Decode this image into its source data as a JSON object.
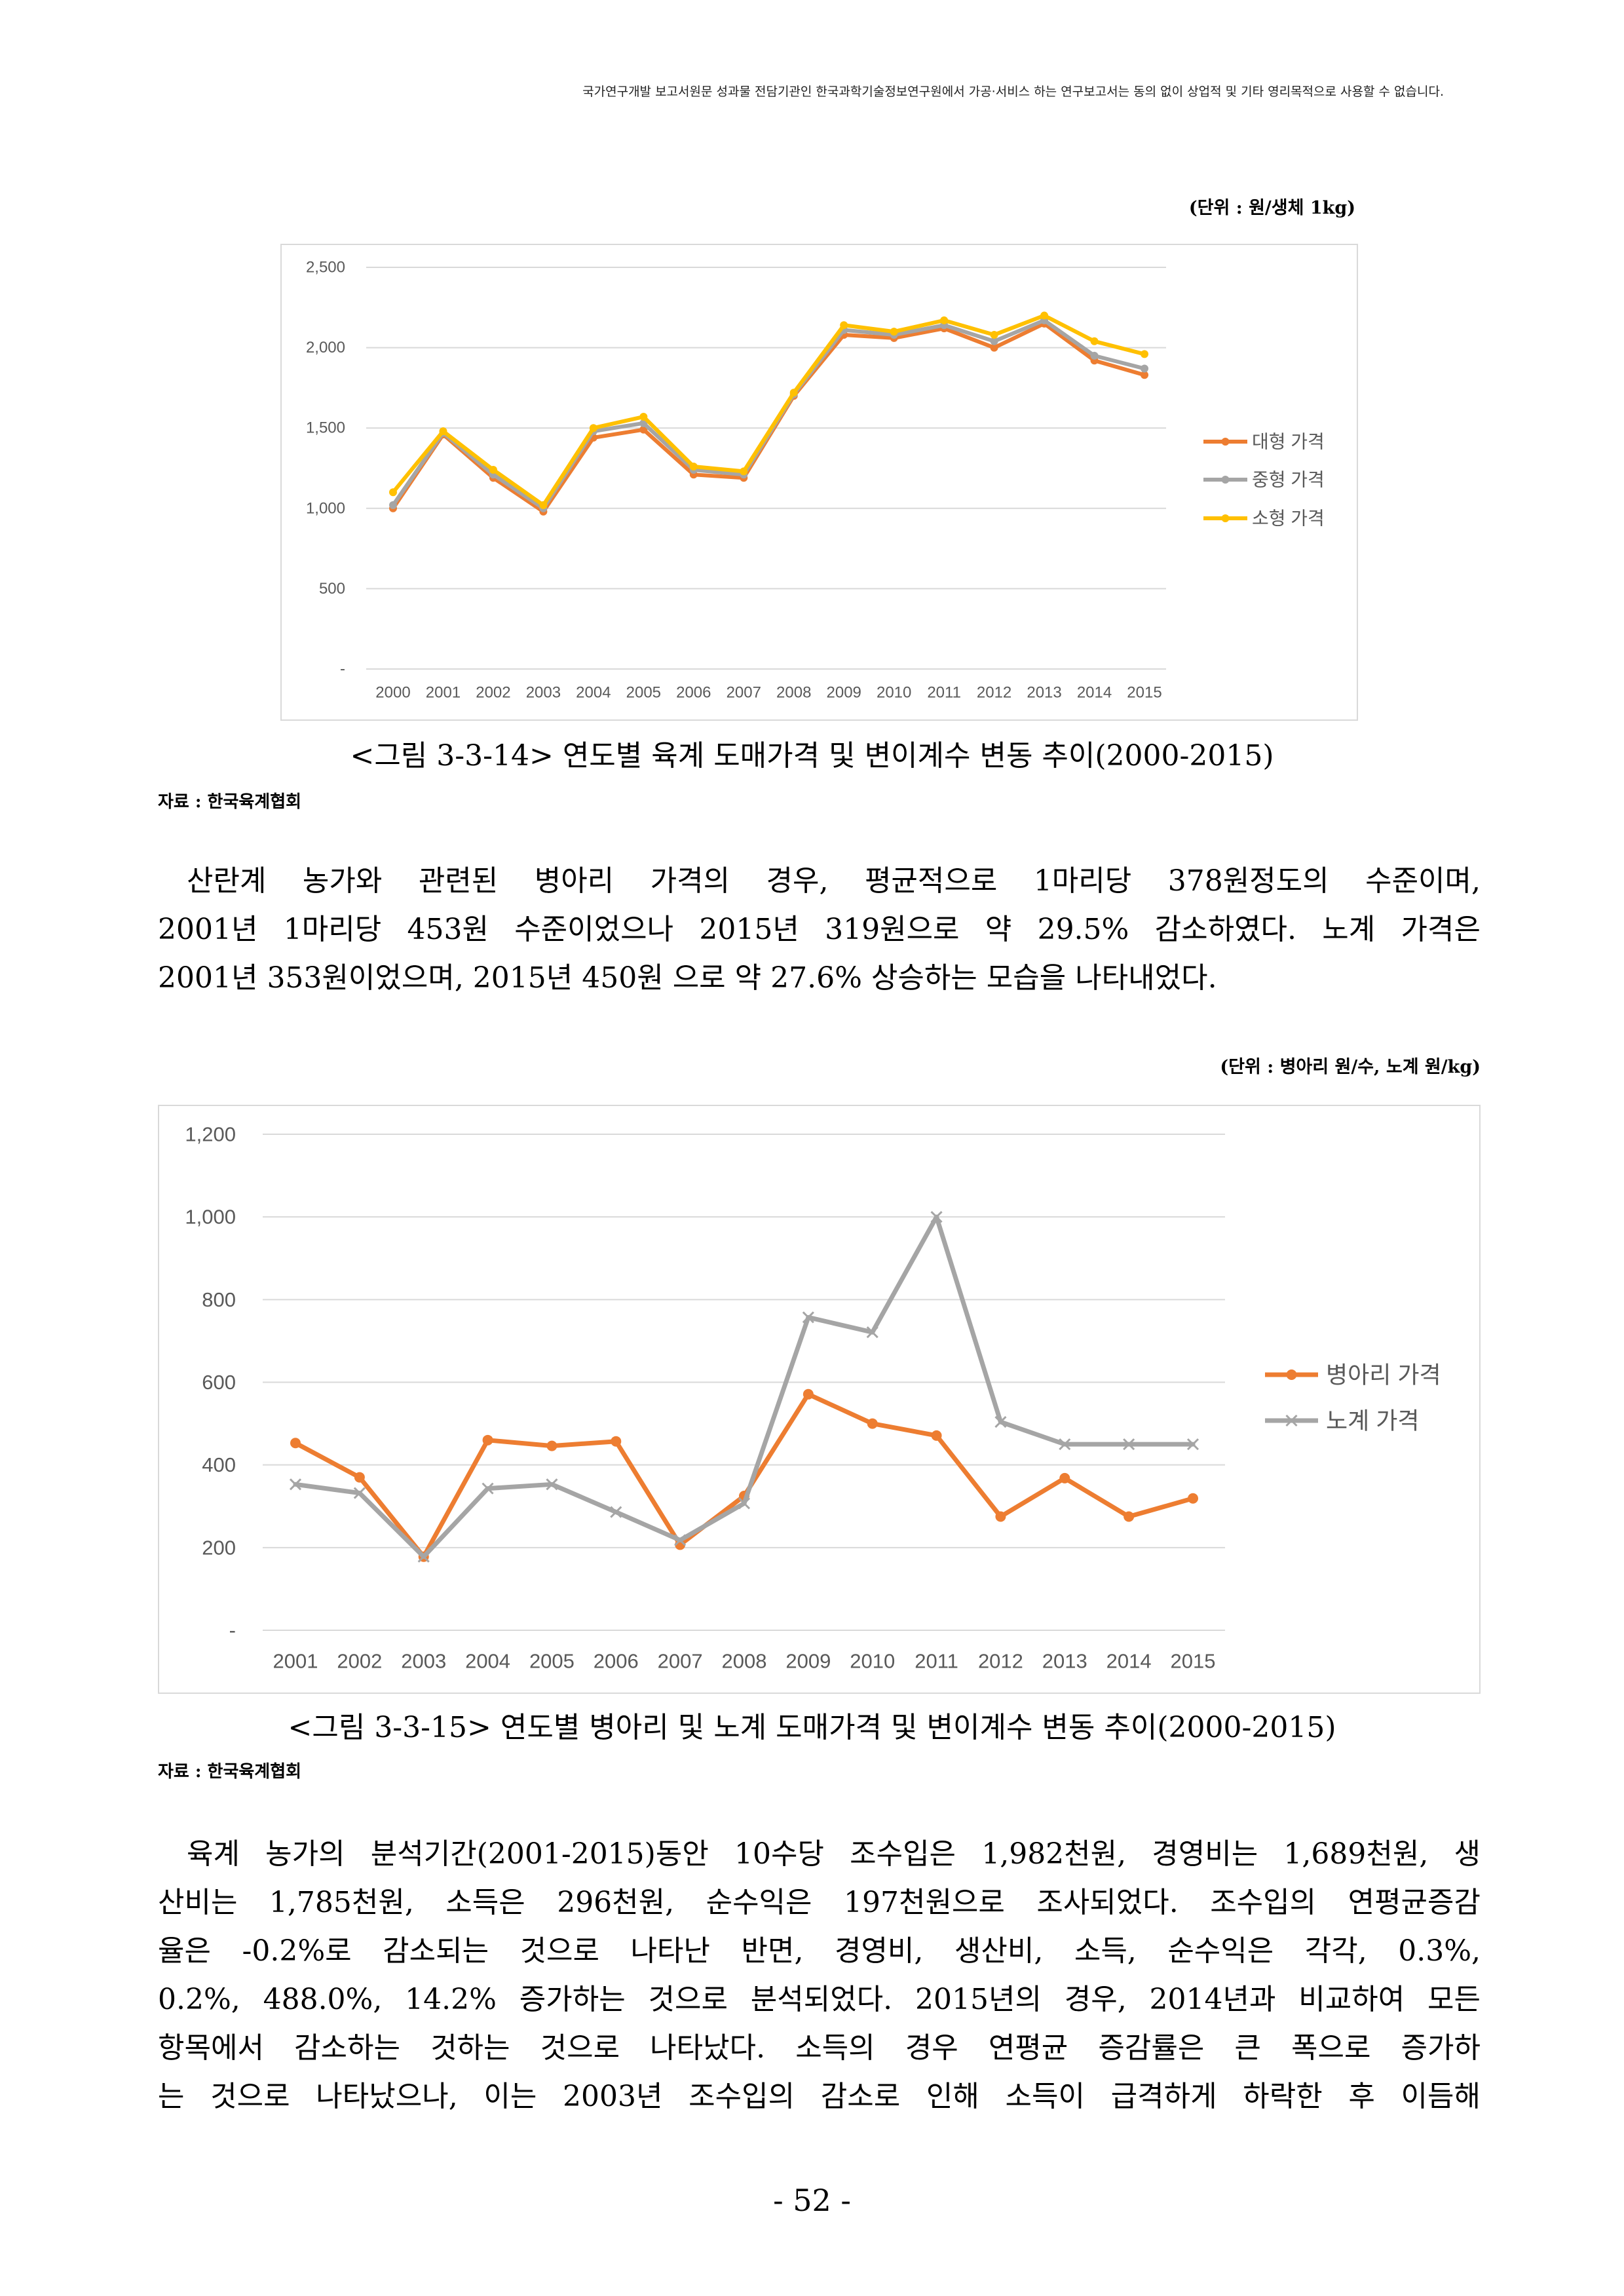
{
  "header_notice": "국가연구개발 보고서원문 성과물 전담기관인 한국과학기술정보연구원에서 가공·서비스 하는 연구보고서는 동의 없이 상업적 및 기타 영리목적으로 사용할 수 없습니다.",
  "figures": [
    {
      "unit": "(단위 : 원/생체 1kg)",
      "caption": "<그림 3-3-14> 연도별 육계 도매가격 및 변이계수 변동 추이(2000-2015)",
      "source": "자료 : 한국육계협회"
    },
    {
      "unit": "(단위 : 병아리 원/수, 노계 원/kg)",
      "caption": "<그림 3-3-15> 연도별 병아리 및 노계 도매가격 및 변이계수 변동 추이(2000-2015)",
      "source": "자료 : 한국육계협회"
    }
  ],
  "paragraphs": [
    [
      "산란계 농가와 관련된 병아리 가격의 경우, 평균적으로 1마리당 378원정도의 수준이며,",
      "2001년 1마리당 453원 수준이었으나 2015년 319원으로 약 29.5% 감소하였다. 노계 가격은",
      "2001년 353원이었으며, 2015년 450원 으로 약 27.6% 상승하는 모습을 나타내었다."
    ],
    [
      "육계 농가의 분석기간(2001-2015)동안 10수당 조수입은 1,982천원, 경영비는 1,689천원, 생",
      "산비는 1,785천원, 소득은 296천원, 순수익은 197천원으로 조사되었다. 조수입의 연평균증감",
      "율은 -0.2%로 감소되는 것으로 나타난 반면, 경영비, 생산비, 소득, 순수익은 각각, 0.3%,",
      "0.2%, 488.0%, 14.2% 증가하는 것으로 분석되었다. 2015년의 경우, 2014년과 비교하여 모든",
      "항목에서 감소하는 것하는 것으로 나타났다. 소득의 경우 연평균 증감률은 큰 폭으로 증가하",
      "는 것으로 나타났으나, 이는 2003년 조수입의 감소로 인해 소득이 급격하게 하락한 후 이듬해"
    ]
  ],
  "page_number": "- 52 -",
  "chart_data": [
    {
      "type": "line",
      "categories": [
        "2000",
        "2001",
        "2002",
        "2003",
        "2004",
        "2005",
        "2006",
        "2007",
        "2008",
        "2009",
        "2010",
        "2011",
        "2012",
        "2013",
        "2014",
        "2015"
      ],
      "series": [
        {
          "name": "대형 가격",
          "color": "#ED7D31",
          "marker": "circle",
          "values": [
            1000,
            1460,
            1190,
            980,
            1440,
            1490,
            1210,
            1190,
            1700,
            2080,
            2060,
            2120,
            2000,
            2150,
            1920,
            1830
          ]
        },
        {
          "name": "중형 가격",
          "color": "#A5A5A5",
          "marker": "circle",
          "values": [
            1020,
            1470,
            1210,
            1000,
            1480,
            1530,
            1240,
            1210,
            1710,
            2110,
            2080,
            2140,
            2040,
            2170,
            1950,
            1870
          ]
        },
        {
          "name": "소형 가격",
          "color": "#FFC000",
          "marker": "circle",
          "values": [
            1100,
            1480,
            1240,
            1020,
            1500,
            1570,
            1260,
            1230,
            1720,
            2140,
            2100,
            2170,
            2080,
            2200,
            2040,
            1960
          ]
        }
      ],
      "ylim": [
        0,
        2500
      ],
      "yticks": [
        2500,
        2000,
        1500,
        1000,
        500,
        0
      ],
      "ytick_labels": [
        "2,500",
        "2,000",
        "1,500",
        "1,000",
        "500",
        "-"
      ],
      "grid": true,
      "legend": "right"
    },
    {
      "type": "line",
      "categories": [
        "2001",
        "2002",
        "2003",
        "2004",
        "2005",
        "2006",
        "2007",
        "2008",
        "2009",
        "2010",
        "2011",
        "2012",
        "2013",
        "2014",
        "2015"
      ],
      "series": [
        {
          "name": "병아리 가격",
          "color": "#ED7D31",
          "marker": "circle",
          "values": [
            453,
            370,
            178,
            460,
            446,
            457,
            207,
            325,
            571,
            500,
            471,
            275,
            368,
            275,
            319
          ]
        },
        {
          "name": "노계 가격",
          "color": "#A5A5A5",
          "marker": "x",
          "values": [
            353,
            332,
            178,
            343,
            353,
            286,
            218,
            307,
            757,
            721,
            1000,
            504,
            450,
            450,
            450
          ]
        }
      ],
      "ylim": [
        0,
        1200
      ],
      "yticks": [
        1200,
        1000,
        800,
        600,
        400,
        200,
        0
      ],
      "ytick_labels": [
        "1,200",
        "1,000",
        "800",
        "600",
        "400",
        "200",
        "-"
      ],
      "grid": true,
      "legend": "right"
    }
  ]
}
